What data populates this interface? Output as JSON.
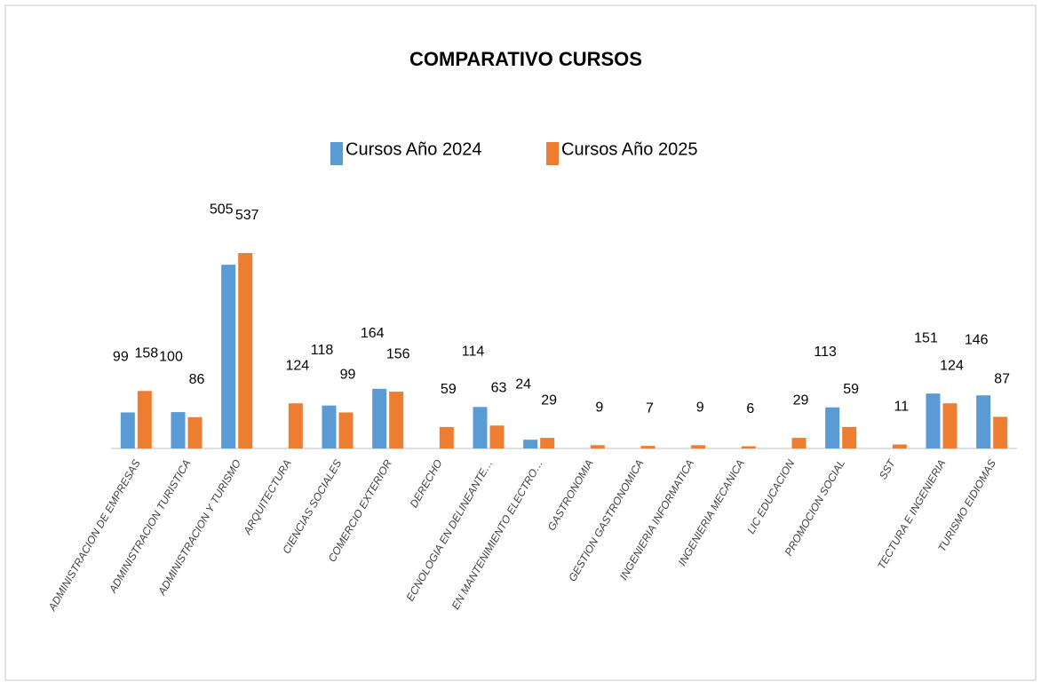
{
  "chart_data": {
    "type": "bar",
    "title": "COMPARATIVO CURSOS",
    "categories": [
      "ADMINISTRACION DE EMPRESAS",
      "ADMINISTRACION TURISTICA",
      "ADMINISTRACION Y TURISMO",
      "ARQUITECTURA",
      "CIENCIAS SOCIALES",
      "COMERCIO EXTERIOR",
      "DERECHO",
      "ECNOLOGIA EN DELINEANTE…",
      "EN MANTENIMIENTO ELECTRO…",
      "GASTRONOMIA",
      "GESTION GASTRONOMICA",
      "INGENIERIA INFORMATICA",
      "INGENIERIA MECANICA",
      "LIC EDUCACION",
      "PROMOCION SOCIAL",
      "SST",
      "TECTURA E INGENIERIA",
      "TURISMO EIDIOMAS"
    ],
    "series": [
      {
        "name": "Cursos Año 2024",
        "color": "#5b9bd5",
        "values": [
          99,
          100,
          505,
          null,
          118,
          164,
          null,
          114,
          24,
          null,
          null,
          null,
          null,
          null,
          113,
          null,
          151,
          146
        ]
      },
      {
        "name": "Cursos Año 2025",
        "color": "#ed7d31",
        "values": [
          158,
          86,
          537,
          124,
          99,
          156,
          59,
          63,
          29,
          9,
          7,
          9,
          6,
          29,
          59,
          11,
          124,
          87
        ]
      }
    ]
  }
}
